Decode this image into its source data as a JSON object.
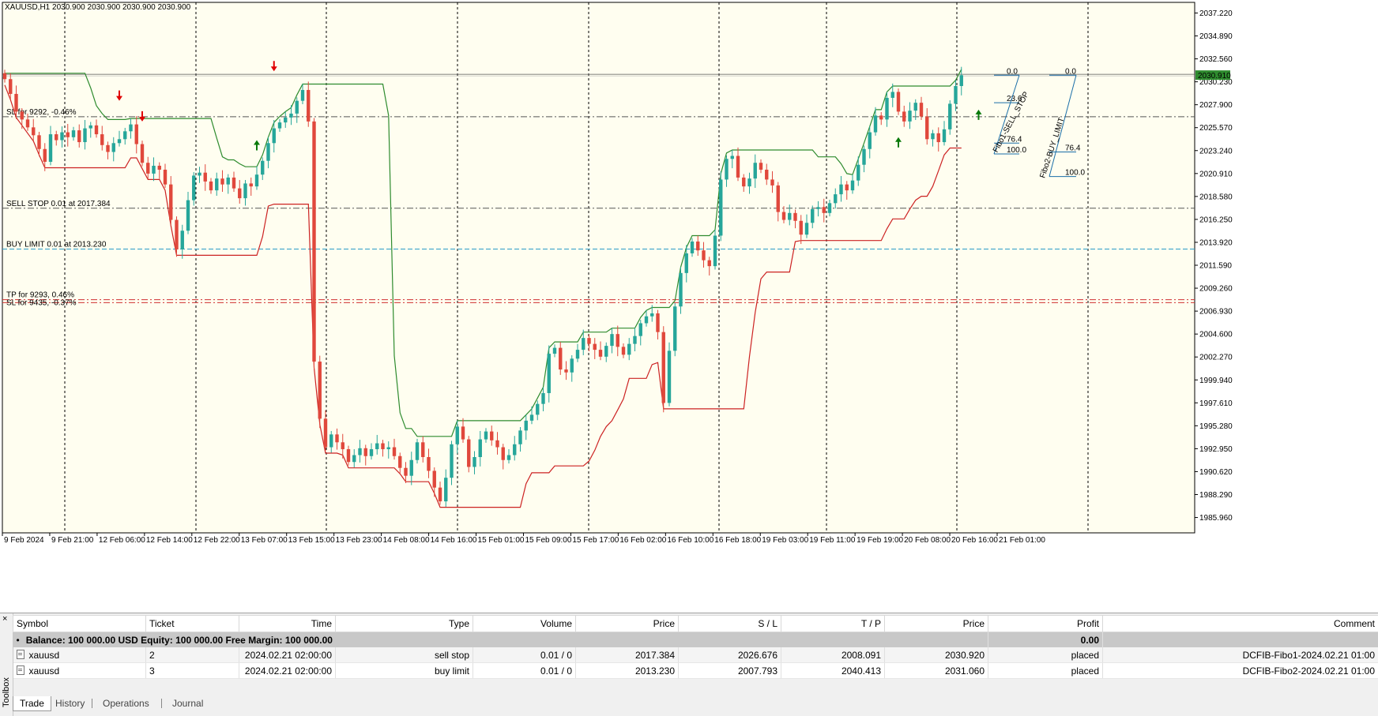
{
  "chart": {
    "header": "XAUUSD,H1  2030.900 2030.900 2030.900 2030.900",
    "price_axis": [
      "2037.220",
      "2034.890",
      "2032.560",
      "2030.230",
      "2027.900",
      "2025.570",
      "2023.240",
      "2020.910",
      "2018.580",
      "2016.250",
      "2013.920",
      "2011.590",
      "2009.260",
      "2006.930",
      "2004.600",
      "2002.270",
      "1999.940",
      "1997.610",
      "1995.280",
      "1992.950",
      "1990.620",
      "1988.290",
      "1985.960"
    ],
    "price_range": [
      1984.4,
      2038.3
    ],
    "current_price": "2030.910",
    "time_axis": [
      "9 Feb 2024",
      "9 Feb 21:00",
      "12 Feb 06:00",
      "12 Feb 14:00",
      "12 Feb 22:00",
      "13 Feb 07:00",
      "13 Feb 15:00",
      "13 Feb 23:00",
      "14 Feb 08:00",
      "14 Feb 16:00",
      "15 Feb 01:00",
      "15 Feb 09:00",
      "15 Feb 17:00",
      "16 Feb 02:00",
      "16 Feb 10:00",
      "16 Feb 18:00",
      "19 Feb 03:00",
      "19 Feb 11:00",
      "19 Feb 19:00",
      "20 Feb 08:00",
      "20 Feb 16:00",
      "21 Feb 01:00"
    ],
    "level_labels": {
      "sl_sell": "SL for 9292, -0.46%",
      "sell_stop": "SELL STOP 0.01 at 2017.384",
      "buy_limit": "BUY LIMIT 0.01 at 2013.230",
      "tp_sell": "TP for 9293, 0.46%",
      "sl_buy": "SL for 9435, -0.37%"
    },
    "levels": {
      "sl_sell": 2026.676,
      "sell_stop": 2017.384,
      "buy_limit": 2013.23,
      "tp_sell": 2008.091,
      "sl_buy": 2007.793,
      "current": 2030.91
    },
    "fibo1": {
      "name": "Fibo1-SELL_STOP",
      "levels": [
        "0.0",
        "23.6",
        "76.4",
        "100.0"
      ]
    },
    "fibo2": {
      "name": "Fibo2-BUY_LIMIT",
      "levels": [
        "0.0",
        "76.4",
        "100.0"
      ]
    },
    "colors": {
      "bull": "#26a69a",
      "bear": "#e0483c",
      "bg": "#fffef0",
      "grid": "#000000",
      "upper": "#2e8b2e",
      "lower": "#cc2222",
      "fib": "#1a6ea8",
      "current": "#2e8b2e"
    }
  },
  "chart_data": {
    "type": "candlestick",
    "title": "XAUUSD,H1",
    "ylim": [
      1984.4,
      2038.3
    ],
    "close": [
      2030.5,
      2029.0,
      2027.2,
      2026.4,
      2025.6,
      2024.8,
      2023.4,
      2022.1,
      2024.9,
      2024.3,
      2025.1,
      2024.6,
      2025.3,
      2024.1,
      2025.5,
      2025.8,
      2024.9,
      2023.8,
      2023.1,
      2024.0,
      2024.4,
      2025.2,
      2025.9,
      2023.9,
      2022.0,
      2020.9,
      2021.7,
      2021.3,
      2019.8,
      2016.2,
      2013.2,
      2015.1,
      2018.2,
      2020.7,
      2021.0,
      2020.1,
      2019.2,
      2020.4,
      2019.8,
      2020.5,
      2019.4,
      2018.4,
      2019.9,
      2019.6,
      2020.8,
      2022.2,
      2024.0,
      2025.5,
      2026.1,
      2026.6,
      2027.0,
      2028.3,
      2029.4,
      2026.2,
      2001.8,
      1996.0,
      1993.1,
      1994.4,
      1993.6,
      1992.9,
      1991.6,
      1992.3,
      1993.0,
      1992.2,
      1992.9,
      1993.5,
      1992.9,
      1993.1,
      1992.2,
      1991.0,
      1990.2,
      1991.8,
      1993.6,
      1992.1,
      1990.7,
      1989.0,
      1987.6,
      1990.0,
      1993.4,
      1995.2,
      1993.9,
      1991.1,
      1992.1,
      1993.9,
      1994.7,
      1993.8,
      1993.1,
      1991.8,
      1992.3,
      1993.4,
      1994.8,
      1995.8,
      1996.4,
      1997.5,
      1998.6,
      2002.6,
      2003.2,
      2001.0,
      2000.7,
      2002.1,
      2003.0,
      2004.2,
      2003.6,
      2003.0,
      2002.3,
      2003.4,
      2004.6,
      2003.3,
      2002.5,
      2003.6,
      2004.4,
      2005.7,
      2006.4,
      2006.7,
      2004.8,
      1997.6,
      2002.9,
      2007.4,
      2010.8,
      2012.8,
      2014.0,
      2013.1,
      2012.1,
      2011.5,
      2014.6,
      2020.3,
      2022.4,
      2022.7,
      2020.5,
      2019.6,
      2020.4,
      2022.0,
      2021.3,
      2020.3,
      2019.7,
      2017.0,
      2016.2,
      2016.9,
      2016.1,
      2014.7,
      2015.9,
      2017.3,
      2017.5,
      2016.9,
      2017.9,
      2018.8,
      2019.8,
      2019.2,
      2020.2,
      2021.8,
      2023.4,
      2025.1,
      2026.8,
      2026.4,
      2028.6,
      2029.2,
      2027.2,
      2026.2,
      2027.3,
      2028.1,
      2026.7,
      2024.4,
      2025.0,
      2024.1,
      2025.4,
      2028.0,
      2029.8,
      2030.9
    ]
  },
  "toolbox": {
    "close": "×",
    "label": "Toolbox",
    "columns": [
      "Symbol",
      "Ticket",
      "Time",
      "Type",
      "Volume",
      "Price",
      "S / L",
      "T / P",
      "Price",
      "Profit",
      "Comment"
    ],
    "balance": "Balance: 100 000.00 USD  Equity: 100 000.00  Free Margin: 100 000.00",
    "balance_profit": "0.00",
    "orders": [
      {
        "symbol": "xauusd",
        "ticket": "2",
        "time": "2024.02.21 02:00:00",
        "type": "sell stop",
        "volume": "0.01 / 0",
        "price": "2017.384",
        "sl": "2026.676",
        "tp": "2008.091",
        "cur_price": "2030.920",
        "profit": "placed",
        "comment": "DCFIB-Fibo1-2024.02.21 01:00"
      },
      {
        "symbol": "xauusd",
        "ticket": "3",
        "time": "2024.02.21 02:00:00",
        "type": "buy limit",
        "volume": "0.01 / 0",
        "price": "2013.230",
        "sl": "2007.793",
        "tp": "2040.413",
        "cur_price": "2031.060",
        "profit": "placed",
        "comment": "DCFIB-Fibo2-2024.02.21 01:00"
      }
    ],
    "tabs": [
      "Trade",
      "History",
      "Operations",
      "Journal"
    ]
  }
}
